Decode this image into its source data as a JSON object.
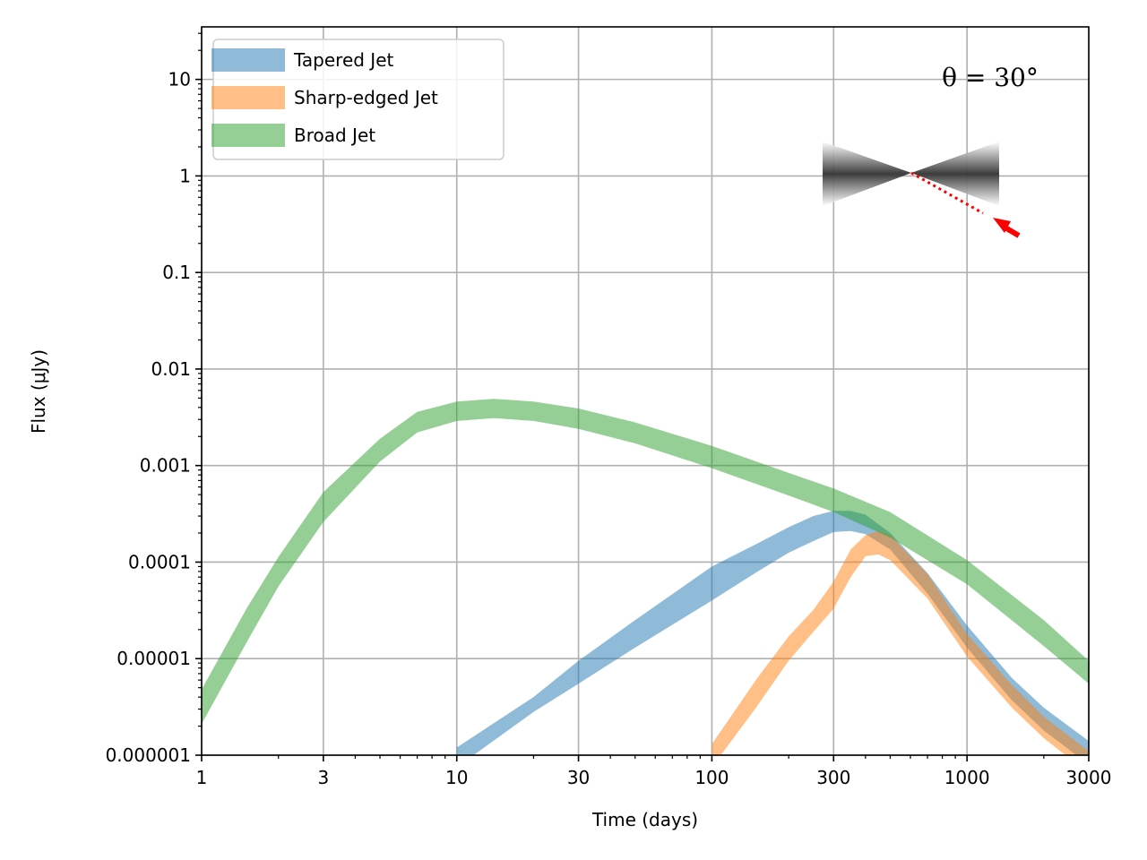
{
  "chart_data": {
    "type": "line",
    "title": "",
    "xlabel": "Time (days)",
    "ylabel": "Flux (μJy)",
    "x_scale": "log",
    "y_scale": "log",
    "xlim": [
      1,
      3000
    ],
    "ylim": [
      1e-06,
      35
    ],
    "grid": true,
    "legend_position": "top-left",
    "x_ticks": [
      {
        "value": 1,
        "label": "1"
      },
      {
        "value": 3,
        "label": "3"
      },
      {
        "value": 10,
        "label": "10"
      },
      {
        "value": 30,
        "label": "30"
      },
      {
        "value": 100,
        "label": "100"
      },
      {
        "value": 300,
        "label": "300"
      },
      {
        "value": 1000,
        "label": "1000"
      },
      {
        "value": 3000,
        "label": "3000"
      }
    ],
    "y_ticks": [
      {
        "value": 1e-06,
        "label": "0.000001"
      },
      {
        "value": 1e-05,
        "label": "0.00001"
      },
      {
        "value": 0.0001,
        "label": "0.0001"
      },
      {
        "value": 0.001,
        "label": "0.001"
      },
      {
        "value": 0.01,
        "label": "0.01"
      },
      {
        "value": 0.1,
        "label": "0.1"
      },
      {
        "value": 1,
        "label": "1"
      },
      {
        "value": 10,
        "label": "10"
      }
    ],
    "annotation": "θ = 30°",
    "series": [
      {
        "name": "Tapered Jet",
        "color": "#1f77b4",
        "alpha": 0.5,
        "x": [
          10,
          20,
          30,
          50,
          100,
          150,
          200,
          250,
          300,
          350,
          400,
          500,
          700,
          1000,
          1500,
          2000,
          3000
        ],
        "y_low": [
          7.5e-07,
          2.8e-06,
          5.5e-06,
          1.3e-05,
          4e-05,
          7.9e-05,
          0.000125,
          0.000165,
          0.000205,
          0.00021,
          0.000195,
          0.000135,
          4.7e-05,
          1.3e-05,
          3.7e-06,
          1.8e-06,
          8e-07
        ],
        "y_high": [
          1.2e-06,
          4e-06,
          9.5e-06,
          2.5e-05,
          9e-05,
          0.000155,
          0.00023,
          0.0003,
          0.00034,
          0.00034,
          0.00031,
          0.0002,
          7.7e-05,
          2.2e-05,
          6.3e-06,
          3.1e-06,
          1.4e-06
        ]
      },
      {
        "name": "Sharp-edged Jet",
        "color": "#ff7f0e",
        "alpha": 0.5,
        "x": [
          100,
          150,
          200,
          250,
          300,
          350,
          400,
          450,
          500,
          700,
          1000,
          1500,
          2000,
          3000
        ],
        "y_low": [
          7.5e-07,
          3.2e-06,
          9.5e-06,
          1.9e-05,
          3.3e-05,
          7e-05,
          0.000115,
          0.00012,
          0.000105,
          4.2e-05,
          1.05e-05,
          3.1e-06,
          1.5e-06,
          6.5e-07
        ],
        "y_high": [
          1.3e-06,
          6.2e-06,
          1.7e-05,
          3.2e-05,
          6.3e-05,
          0.000135,
          0.00019,
          0.00021,
          0.00019,
          7.5e-05,
          1.8e-05,
          5.3e-06,
          2.5e-06,
          1.1e-06
        ]
      },
      {
        "name": "Broad Jet",
        "color": "#2ca02c",
        "alpha": 0.5,
        "x": [
          1,
          1.5,
          2,
          3,
          5,
          7,
          10,
          14,
          20,
          30,
          50,
          100,
          200,
          300,
          500,
          1000,
          2000,
          3000
        ],
        "y_low": [
          2.1e-06,
          1.47e-05,
          5.6e-05,
          0.00026,
          0.0011,
          0.0022,
          0.0029,
          0.0031,
          0.0029,
          0.0024,
          0.0017,
          0.00094,
          0.00049,
          0.00033,
          0.00018,
          5.9e-05,
          1.35e-05,
          5.5e-06
        ],
        "y_high": [
          4.8e-06,
          3.3e-05,
          0.000113,
          0.00053,
          0.0019,
          0.0036,
          0.0046,
          0.0049,
          0.0046,
          0.0039,
          0.0028,
          0.0016,
          0.00084,
          0.00058,
          0.00033,
          0.000105,
          2.5e-05,
          9.5e-06
        ]
      }
    ]
  }
}
